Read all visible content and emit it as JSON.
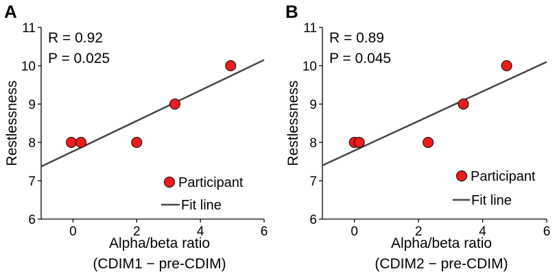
{
  "chart_data": [
    {
      "type": "scatter",
      "panel_label": "A",
      "xlabel": "Alpha/beta ratio",
      "xlabel2": "(CDIM1 − pre-CDIM)",
      "ylabel": "Restlessness",
      "xlim": [
        -1,
        6
      ],
      "ylim": [
        6,
        11
      ],
      "xticks": [
        0,
        2,
        4,
        6
      ],
      "yticks": [
        6,
        7,
        8,
        9,
        10,
        11
      ],
      "annotations": [
        "R = 0.92",
        "P = 0.025"
      ],
      "points": [
        [
          -0.05,
          8
        ],
        [
          0.25,
          8
        ],
        [
          2.0,
          8
        ],
        [
          3.2,
          9
        ],
        [
          4.95,
          10
        ]
      ],
      "fit_line": [
        [
          -1,
          7.37
        ],
        [
          6,
          10.15
        ]
      ],
      "legend": {
        "placement": "bottom-right",
        "entries": [
          "Participant",
          "Fit line"
        ]
      },
      "colors": {
        "point": "#ee1c1c",
        "line": "#444444"
      }
    },
    {
      "type": "scatter",
      "panel_label": "B",
      "xlabel": "Alpha/beta ratio",
      "xlabel2": "(CDIM2 − pre-CDIM)",
      "ylabel": "Restlessness",
      "xlim": [
        -1,
        6
      ],
      "ylim": [
        6,
        11
      ],
      "xticks": [
        0,
        2,
        4,
        6
      ],
      "yticks": [
        6,
        7,
        8,
        9,
        10,
        11
      ],
      "annotations": [
        "R = 0.89",
        "P = 0.045"
      ],
      "points": [
        [
          0.0,
          8
        ],
        [
          0.15,
          8
        ],
        [
          2.3,
          8
        ],
        [
          3.4,
          9
        ],
        [
          4.75,
          10
        ]
      ],
      "fit_line": [
        [
          -1,
          7.4
        ],
        [
          6,
          10.1
        ]
      ],
      "legend": {
        "placement": "bottom-right",
        "entries": [
          "Participant",
          "Fit line"
        ]
      },
      "colors": {
        "point": "#ee1c1c",
        "line": "#444444"
      }
    }
  ]
}
